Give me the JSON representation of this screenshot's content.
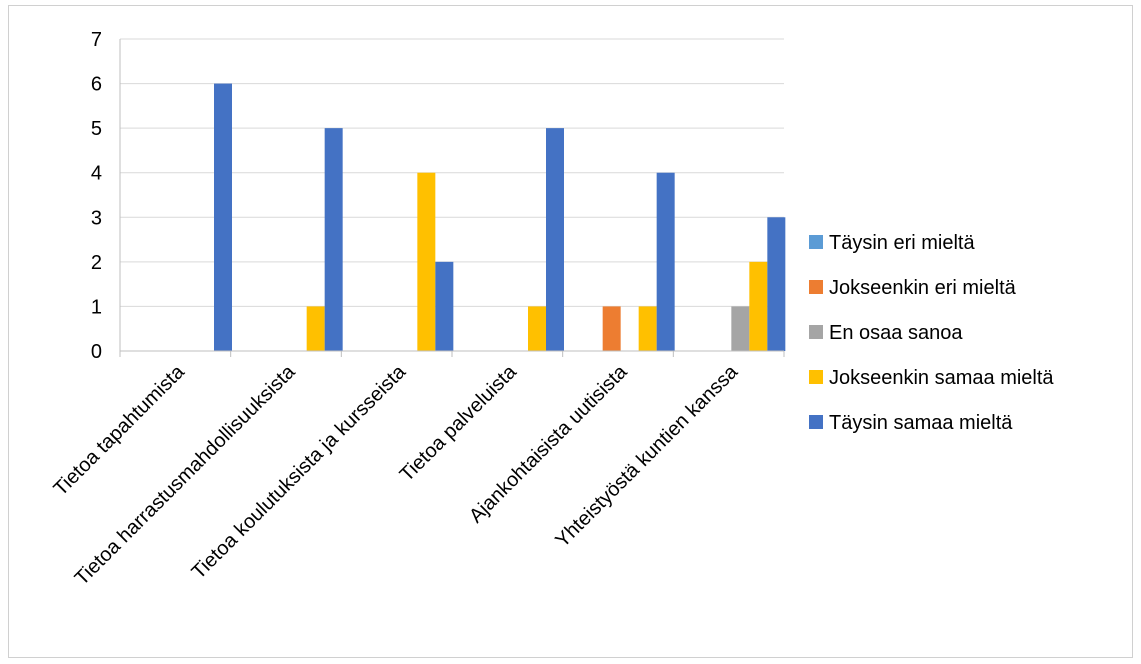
{
  "chart_data": {
    "type": "bar",
    "title": "",
    "xlabel": "",
    "ylabel": "",
    "ylim": [
      0,
      7
    ],
    "yticks": [
      0,
      1,
      2,
      3,
      4,
      5,
      6,
      7
    ],
    "grid": true,
    "legend_position": "right",
    "categories": [
      "Tietoa tapahtumista",
      "Tietoa harrastusmahdollisuuksista",
      "Tietoa koulutuksista ja kursseista",
      "Tietoa palveluista",
      "Ajankohtaisista uutisista",
      "Yhteistyöstä kuntien kanssa"
    ],
    "series": [
      {
        "name": "Täysin eri mieltä",
        "color": "#5b9bd5",
        "values": [
          0,
          0,
          0,
          0,
          0,
          0
        ]
      },
      {
        "name": "Jokseenkin eri mieltä",
        "color": "#ed7d31",
        "values": [
          0,
          0,
          0,
          0,
          1,
          0
        ]
      },
      {
        "name": "En osaa sanoa",
        "color": "#a5a5a5",
        "values": [
          0,
          0,
          0,
          0,
          0,
          1
        ]
      },
      {
        "name": "Jokseenkin samaa mieltä",
        "color": "#ffc000",
        "values": [
          0,
          1,
          4,
          1,
          1,
          2
        ]
      },
      {
        "name": "Täysin samaa mieltä",
        "color": "#4472c4",
        "values": [
          6,
          5,
          2,
          5,
          4,
          3
        ]
      }
    ]
  }
}
